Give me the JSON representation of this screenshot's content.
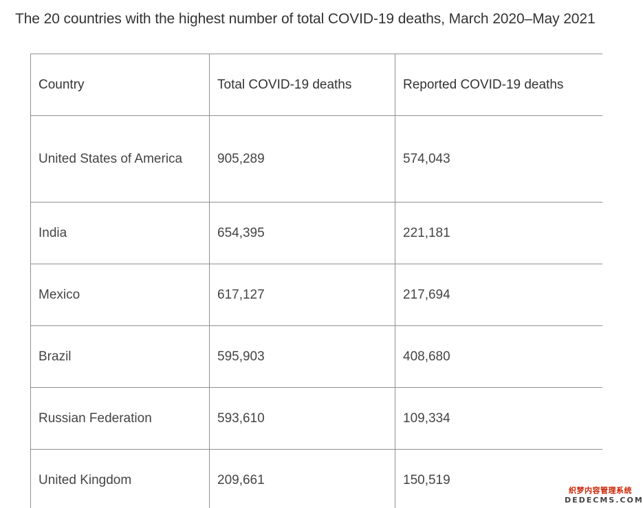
{
  "title": "The 20 countries with the highest number of total COVID-19 deaths, March 2020–May 2021",
  "table": {
    "headers": [
      "Country",
      "Total COVID-19 deaths",
      "Reported COVID-19 deaths"
    ],
    "rows": [
      [
        "United States of America",
        "905,289",
        "574,043"
      ],
      [
        "India",
        "654,395",
        "221,181"
      ],
      [
        "Mexico",
        "617,127",
        "217,694"
      ],
      [
        "Brazil",
        "595,903",
        "408,680"
      ],
      [
        "Russian Federation",
        "593,610",
        "109,334"
      ],
      [
        "United Kingdom",
        "209,661",
        "150,519"
      ]
    ]
  },
  "watermark": {
    "line1": "织梦内容管理系统",
    "line2": "DEDECMS.COM"
  }
}
